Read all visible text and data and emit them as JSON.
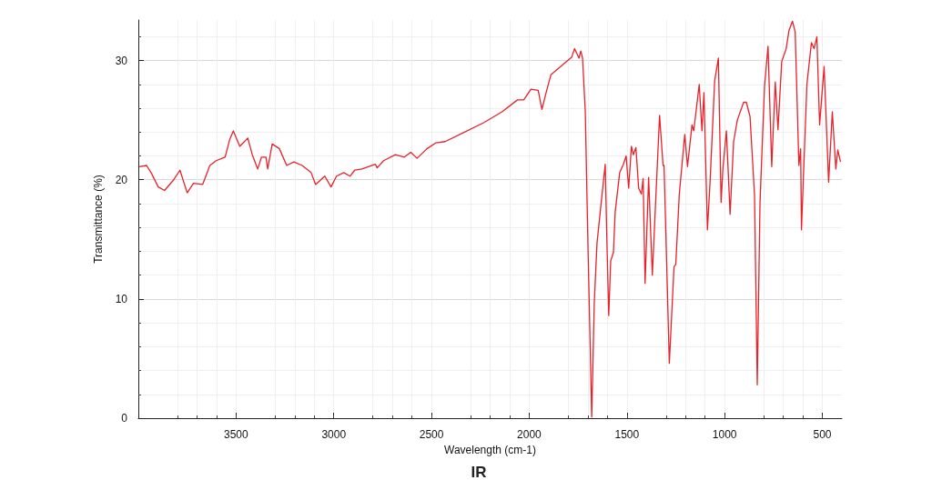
{
  "chart_data": {
    "type": "line",
    "title": "IR",
    "xlabel": "Wavelength (cm-1)",
    "ylabel": "Transmittance (%)",
    "xlim": [
      4000,
      400
    ],
    "xticks": [
      3500,
      3000,
      2500,
      2000,
      1500,
      1000,
      500
    ],
    "ylim": [
      0,
      33.4
    ],
    "yticks": [
      0,
      10,
      20,
      30
    ],
    "grid": true,
    "series": [
      {
        "color": "#e8212a",
        "x": [
          3995,
          3958,
          3935,
          3898,
          3866,
          3819,
          3787,
          3750,
          3718,
          3671,
          3634,
          3602,
          3556,
          3532,
          3514,
          3481,
          3440,
          3417,
          3389,
          3370,
          3347,
          3338,
          3315,
          3278,
          3241,
          3204,
          3162,
          3116,
          3093,
          3046,
          3014,
          2986,
          2949,
          2917,
          2893,
          2856,
          2787,
          2778,
          2745,
          2685,
          2639,
          2606,
          2574,
          2523,
          2477,
          2430,
          2231,
          2139,
          2060,
          2028,
          1991,
          1954,
          1935,
          1912,
          1889,
          1782,
          1768,
          1745,
          1736,
          1727,
          1713,
          1699,
          1680,
          1667,
          1653,
          1634,
          1611,
          1602,
          1593,
          1583,
          1569,
          1560,
          1537,
          1518,
          1504,
          1491,
          1477,
          1467,
          1454,
          1440,
          1426,
          1417,
          1407,
          1389,
          1370,
          1333,
          1315,
          1310,
          1283,
          1259,
          1250,
          1232,
          1204,
          1190,
          1167,
          1158,
          1130,
          1116,
          1106,
          1088,
          1074,
          1051,
          1032,
          1018,
          1009,
          991,
          972,
          954,
          935,
          903,
          889,
          870,
          847,
          833,
          819,
          796,
          778,
          759,
          741,
          727,
          708,
          685,
          671,
          653,
          639,
          620,
          611,
          607,
          579,
          556,
          542,
          528,
          514,
          491,
          468,
          449,
          431,
          421,
          407
        ],
        "values": [
          21.1,
          21.2,
          20.6,
          19.4,
          19.1,
          20.0,
          20.8,
          18.9,
          19.7,
          19.6,
          21.2,
          21.6,
          21.9,
          23.4,
          24.1,
          22.8,
          23.5,
          22.1,
          20.9,
          21.9,
          21.9,
          20.9,
          23.0,
          22.6,
          21.2,
          21.5,
          21.2,
          20.6,
          19.6,
          20.3,
          19.4,
          20.3,
          20.6,
          20.3,
          20.8,
          20.9,
          21.3,
          21.0,
          21.6,
          22.1,
          21.9,
          22.3,
          21.8,
          22.6,
          23.1,
          23.2,
          24.8,
          25.7,
          26.7,
          26.7,
          27.6,
          27.5,
          25.9,
          27.4,
          28.8,
          30.3,
          31.0,
          30.2,
          30.8,
          30.2,
          25.7,
          14.2,
          0.1,
          9.7,
          14.7,
          17.7,
          21.3,
          14.5,
          8.6,
          13.2,
          13.9,
          17.3,
          20.6,
          21.3,
          22.0,
          19.3,
          22.8,
          22.1,
          22.7,
          19.3,
          18.8,
          20.1,
          11.3,
          20.2,
          12.0,
          25.4,
          21.2,
          21.2,
          4.6,
          12.7,
          12.9,
          18.8,
          23.8,
          21.1,
          24.6,
          24.1,
          28.0,
          24.1,
          27.3,
          15.8,
          20.0,
          28.3,
          30.2,
          18.1,
          20.9,
          24.1,
          17.1,
          23.2,
          25.0,
          26.5,
          26.5,
          25.3,
          18.7,
          2.8,
          18.1,
          27.8,
          31.2,
          21.1,
          28.2,
          24.2,
          29.9,
          31.0,
          32.5,
          33.3,
          32.4,
          21.2,
          22.6,
          15.8,
          28.0,
          31.5,
          31.0,
          32.0,
          24.6,
          29.5,
          19.8,
          25.7,
          20.9,
          22.5,
          21.5
        ]
      }
    ]
  }
}
